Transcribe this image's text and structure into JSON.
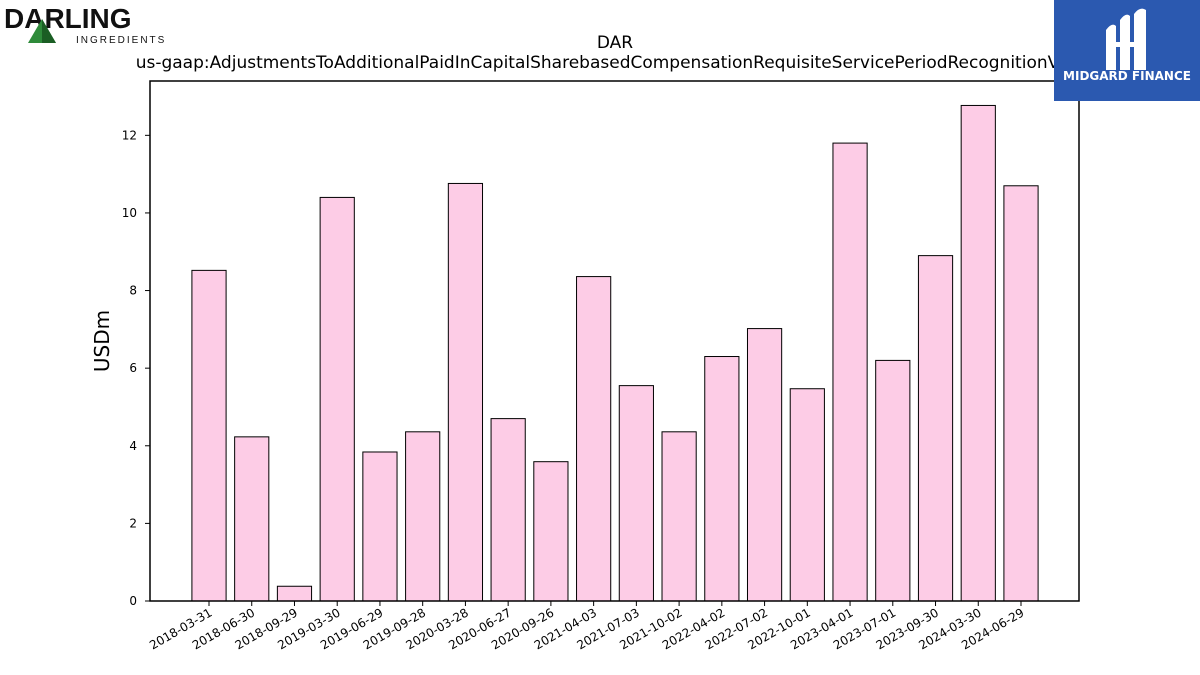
{
  "logos": {
    "left_brand": "DARLING",
    "left_sub": "INGREDIENTS",
    "right_brand": "MIDGARD FINANCE"
  },
  "chart_data": {
    "type": "bar",
    "title": "DAR",
    "subtitle": "us-gaap:AdjustmentsToAdditionalPaidInCapitalSharebasedCompensationRequisiteServicePeriodRecognitionValue",
    "xlabel": "",
    "ylabel": "USDm",
    "ylim": [
      0,
      13.4
    ],
    "yticks": [
      0,
      2,
      4,
      6,
      8,
      10,
      12
    ],
    "grid": false,
    "bar_color": "#fdcce6",
    "categories": [
      "2018-03-31",
      "2018-06-30",
      "2018-09-29",
      "2019-03-30",
      "2019-06-29",
      "2019-09-28",
      "2020-03-28",
      "2020-06-27",
      "2020-09-26",
      "2021-04-03",
      "2021-07-03",
      "2021-10-02",
      "2022-04-02",
      "2022-07-02",
      "2022-10-01",
      "2023-04-01",
      "2023-07-01",
      "2023-09-30",
      "2024-03-30",
      "2024-06-29"
    ],
    "values": [
      8.52,
      4.23,
      0.38,
      10.4,
      3.84,
      4.36,
      10.76,
      4.7,
      3.59,
      8.36,
      5.55,
      4.36,
      6.3,
      7.02,
      5.47,
      11.8,
      6.2,
      8.9,
      12.77,
      10.7
    ]
  }
}
